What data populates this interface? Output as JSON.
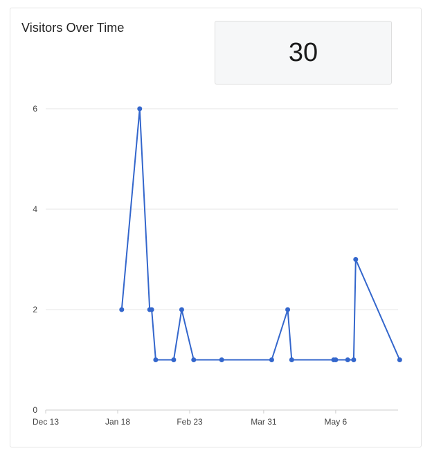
{
  "card": {
    "title": "Visitors Over Time",
    "stat_value": "30"
  },
  "colors": {
    "line": "#3366cc",
    "grid": "#e6e6e6",
    "axis": "#cccccc",
    "stat_bg": "#f6f7f8"
  },
  "chart_data": {
    "type": "line",
    "title": "",
    "xlabel": "",
    "ylabel": "",
    "ylim": [
      0,
      6
    ],
    "xlim": [
      "2023-12-13",
      "2024-05-29"
    ],
    "grid": true,
    "legend": "none",
    "y_ticks": [
      "0",
      "2",
      "4",
      "6"
    ],
    "x_ticks": [
      {
        "date": "2023-12-13",
        "label": "Dec 13"
      },
      {
        "date": "2024-01-18",
        "label": "Jan 18"
      },
      {
        "date": "2024-02-23",
        "label": "Feb 23"
      },
      {
        "date": "2024-03-31",
        "label": "Mar 31"
      },
      {
        "date": "2024-05-06",
        "label": "May 6"
      }
    ],
    "series": [
      {
        "points": [
          {
            "x": "2024-01-20",
            "y": 2
          },
          {
            "x": "2024-01-29",
            "y": 6
          },
          {
            "x": "2024-02-03",
            "y": 2
          },
          {
            "x": "2024-02-04",
            "y": 2
          },
          {
            "x": "2024-02-06",
            "y": 1
          },
          {
            "x": "2024-02-15",
            "y": 1
          },
          {
            "x": "2024-02-19",
            "y": 2
          },
          {
            "x": "2024-02-25",
            "y": 1
          },
          {
            "x": "2024-03-10",
            "y": 1
          },
          {
            "x": "2024-04-04",
            "y": 1
          },
          {
            "x": "2024-04-12",
            "y": 2
          },
          {
            "x": "2024-04-14",
            "y": 1
          },
          {
            "x": "2024-05-05",
            "y": 1
          },
          {
            "x": "2024-05-06",
            "y": 1
          },
          {
            "x": "2024-05-12",
            "y": 1
          },
          {
            "x": "2024-05-15",
            "y": 1
          },
          {
            "x": "2024-05-16",
            "y": 3
          },
          {
            "x": "2024-06-07",
            "y": 1
          }
        ]
      }
    ]
  }
}
